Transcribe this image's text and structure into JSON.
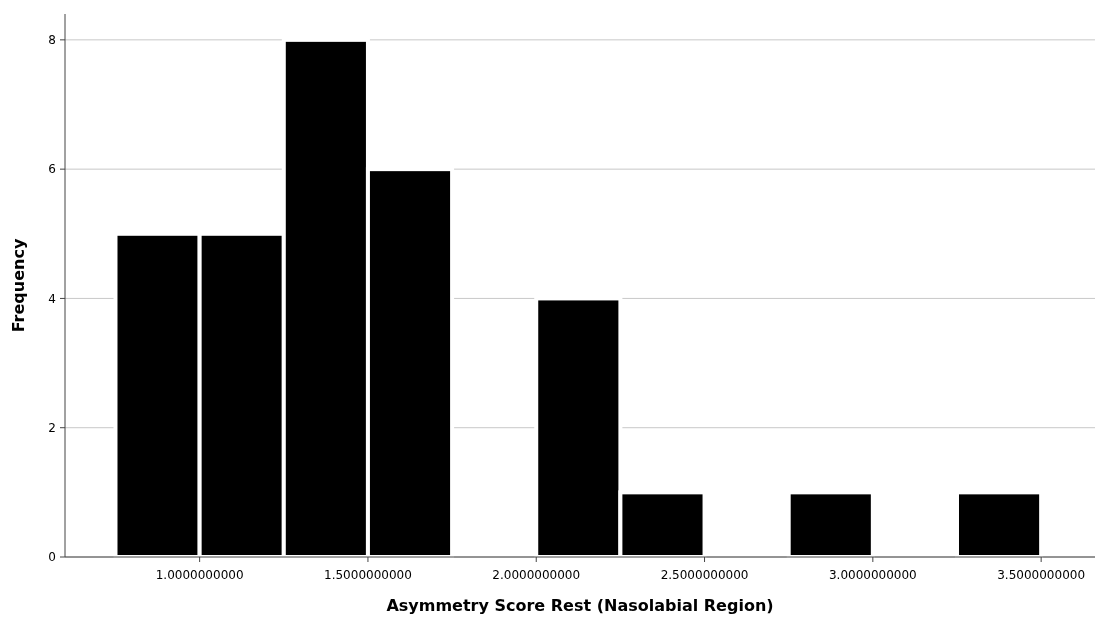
{
  "chart_data": {
    "type": "histogram",
    "xlabel": "Asymmetry Score Rest (Nasolabial Region)",
    "ylabel": "Frequency",
    "bins": [
      0.75,
      1.0,
      1.25,
      1.5,
      1.75,
      2.0,
      2.25,
      2.5,
      2.75,
      3.0,
      3.25,
      3.5
    ],
    "values": [
      5,
      5,
      8,
      6,
      0,
      4,
      1,
      0,
      1,
      0,
      1
    ],
    "color": "#000000",
    "xlim": [
      0.6,
      3.66
    ],
    "ylim": [
      0,
      8.4
    ],
    "xticks": [
      {
        "value": 1,
        "label": "1.0000000000"
      },
      {
        "value": 1.5,
        "label": "1.5000000000"
      },
      {
        "value": 2,
        "label": "2.0000000000"
      },
      {
        "value": 2.5,
        "label": "2.5000000000"
      },
      {
        "value": 3,
        "label": "3.0000000000"
      },
      {
        "value": 3.5,
        "label": "3.5000000000"
      }
    ],
    "yticks": [
      0,
      2,
      4,
      6,
      8
    ],
    "grid": "y"
  }
}
